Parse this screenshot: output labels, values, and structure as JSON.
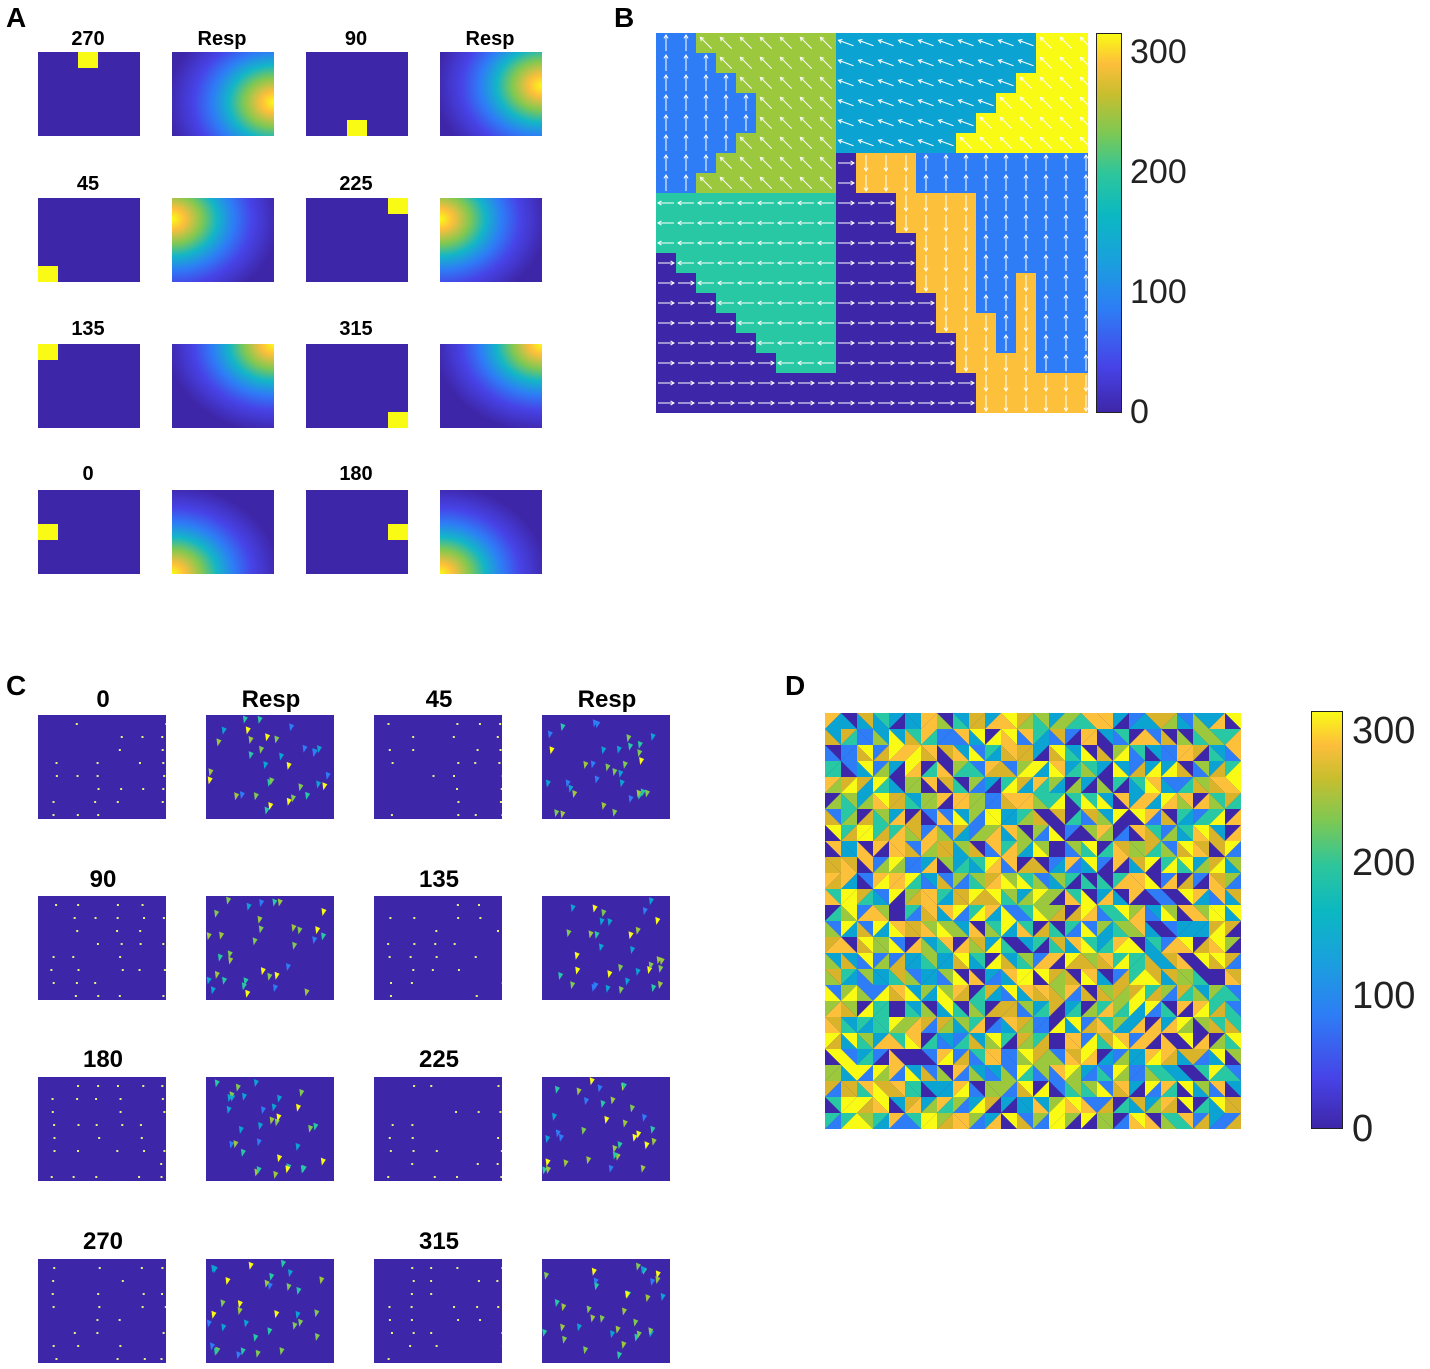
{
  "panels": {
    "A": {
      "letter": "A",
      "titles": [
        "270",
        "Resp",
        "90",
        "Resp",
        "45",
        "225",
        "135",
        "315",
        "0",
        "180"
      ]
    },
    "B": {
      "letter": "B"
    },
    "C": {
      "letter": "C",
      "titles": [
        "0",
        "Resp",
        "45",
        "Resp",
        "90",
        "135",
        "180",
        "225",
        "270",
        "315"
      ]
    },
    "D": {
      "letter": "D"
    }
  },
  "chart_data": [
    {
      "type": "heatmap",
      "panel": "A",
      "stimulus_directions": [
        270,
        90,
        45,
        225,
        135,
        315,
        0,
        180
      ],
      "colormap": "parula"
    },
    {
      "type": "heatmap",
      "panel": "B",
      "colorbar": {
        "ticks": [
          "300",
          "200",
          "100",
          "0"
        ],
        "range": [
          0,
          315
        ]
      },
      "colormap": "parula",
      "overlay": "direction arrows"
    },
    {
      "type": "heatmap",
      "panel": "C",
      "stimulus_directions": [
        0,
        45,
        90,
        135,
        180,
        225,
        270,
        315
      ],
      "colormap": "parula"
    },
    {
      "type": "heatmap",
      "panel": "D",
      "colorbar": {
        "ticks": [
          "300",
          "200",
          "100",
          "0"
        ],
        "range": [
          0,
          315
        ]
      },
      "colormap": "parula"
    }
  ],
  "colors": {
    "c0": "#3e26a8",
    "c45": "#2e7cf6",
    "c90": "#0ba4d2",
    "c135": "#28c8a4",
    "c180": "#9bc83d",
    "c225": "#d9b42a",
    "c270": "#fcc03a",
    "c315": "#f9fb15"
  }
}
